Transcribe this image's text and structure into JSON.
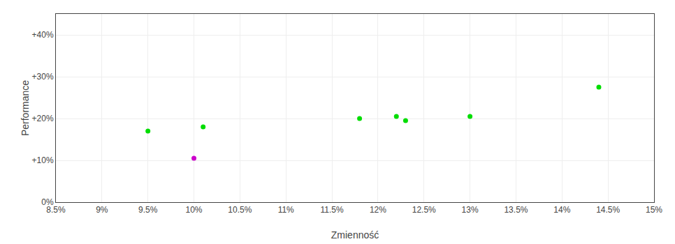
{
  "chart_data": {
    "type": "scatter",
    "xlabel": "Zmienność",
    "ylabel": "Performance",
    "marker": "circle",
    "grid": true,
    "xlim": [
      0.085,
      0.15
    ],
    "ylim": [
      0.0,
      0.45
    ],
    "xticks": [
      {
        "value": 0.085,
        "label": "8.5%"
      },
      {
        "value": 0.09,
        "label": "9%"
      },
      {
        "value": 0.095,
        "label": "9.5%"
      },
      {
        "value": 0.1,
        "label": "10%"
      },
      {
        "value": 0.105,
        "label": "10.5%"
      },
      {
        "value": 0.11,
        "label": "11%"
      },
      {
        "value": 0.115,
        "label": "11.5%"
      },
      {
        "value": 0.12,
        "label": "12%"
      },
      {
        "value": 0.125,
        "label": "12.5%"
      },
      {
        "value": 0.13,
        "label": "13%"
      },
      {
        "value": 0.135,
        "label": "13.5%"
      },
      {
        "value": 0.14,
        "label": "14%"
      },
      {
        "value": 0.145,
        "label": "14.5%"
      },
      {
        "value": 0.15,
        "label": "15%"
      }
    ],
    "yticks": [
      {
        "value": 0.0,
        "label": "0%"
      },
      {
        "value": 0.1,
        "label": "+10%"
      },
      {
        "value": 0.2,
        "label": "+20%"
      },
      {
        "value": 0.3,
        "label": "+30%"
      },
      {
        "value": 0.4,
        "label": "+40%"
      }
    ],
    "series": [
      {
        "color": "#00dd00",
        "x": [
          0.095,
          0.101,
          0.118,
          0.122,
          0.123,
          0.13,
          0.144
        ],
        "values": [
          0.17,
          0.18,
          0.2,
          0.205,
          0.195,
          0.205,
          0.275
        ]
      },
      {
        "color": "#cc00cc",
        "x": [
          0.1
        ],
        "values": [
          0.105
        ]
      }
    ]
  }
}
